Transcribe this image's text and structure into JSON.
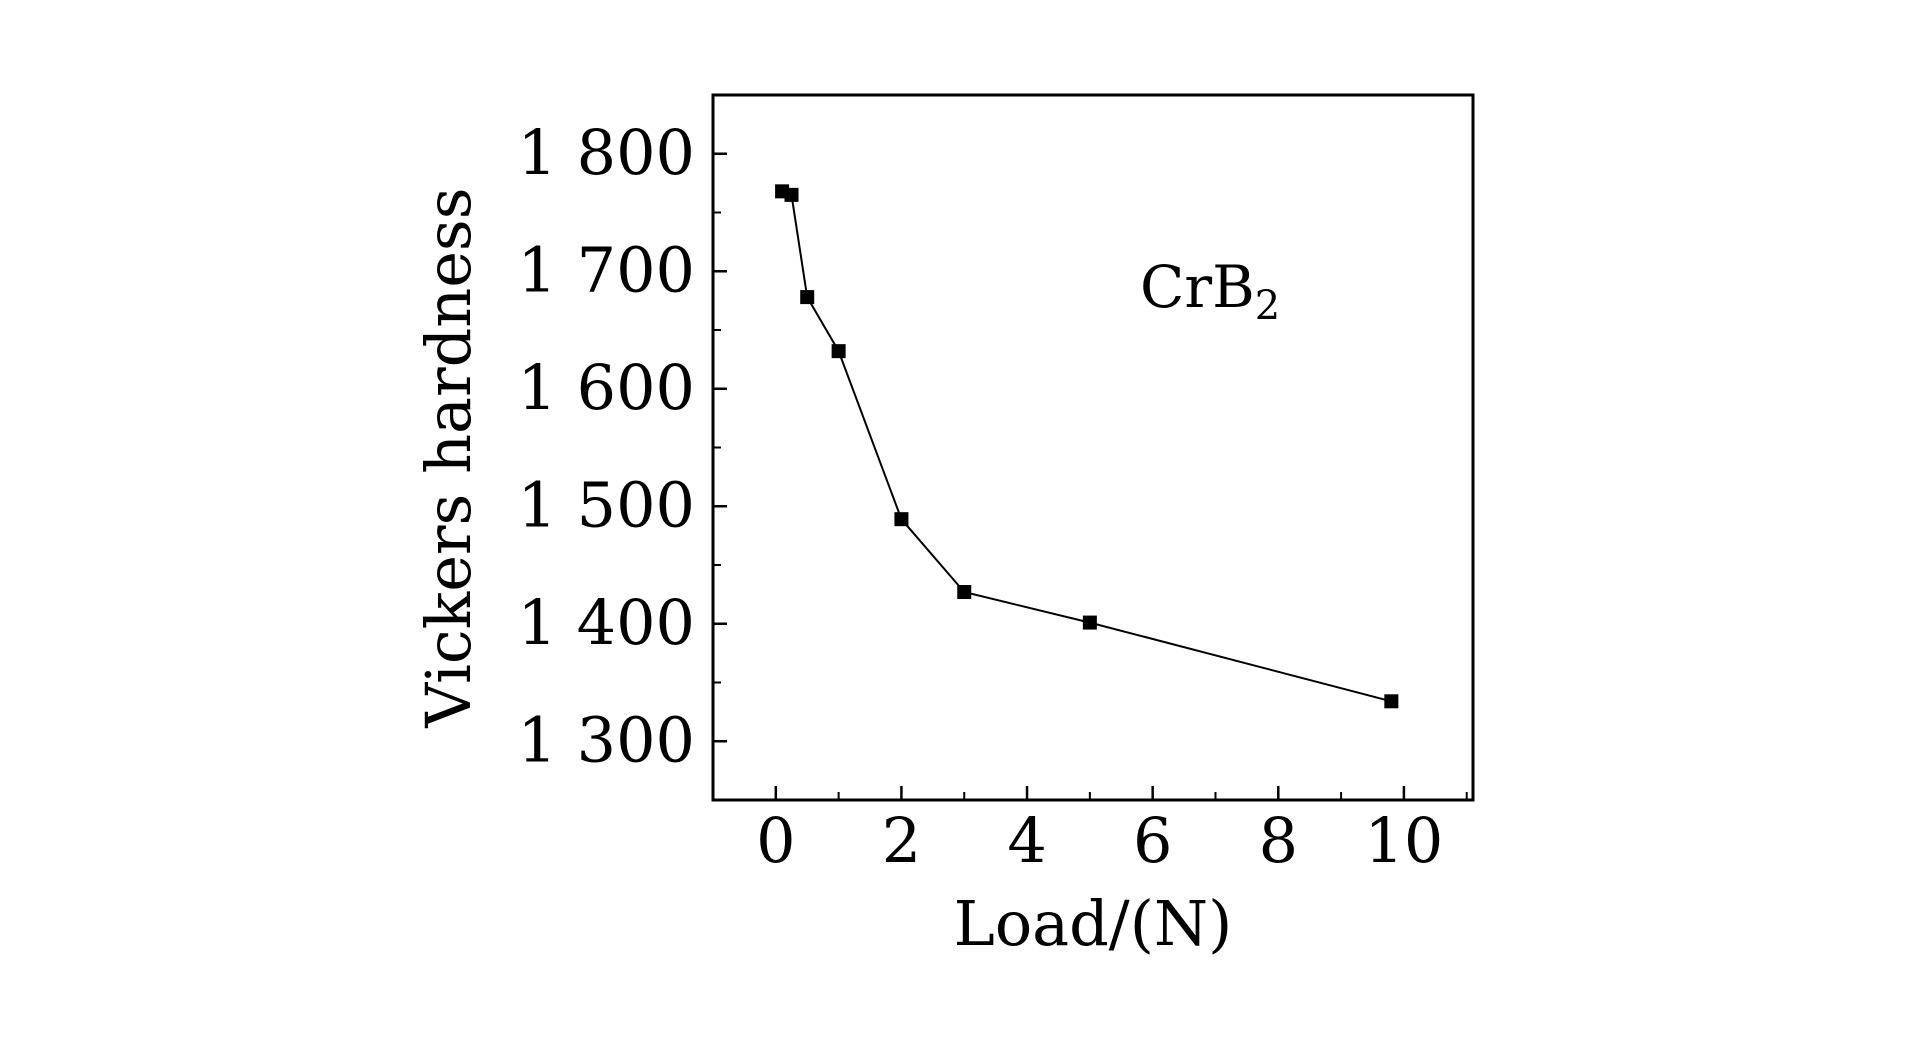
{
  "chart_data": {
    "type": "line",
    "title": "",
    "xlabel": "Load/(N)",
    "ylabel": "Vickers hardness",
    "annotation": {
      "base": "CrB",
      "subscript": "2"
    },
    "xlim": [
      -1,
      11.1
    ],
    "ylim": [
      1250,
      1850
    ],
    "xticks": [
      0,
      2,
      4,
      6,
      8,
      10
    ],
    "xtick_labels": [
      "0",
      "2",
      "4",
      "6",
      "8",
      "10"
    ],
    "yticks": [
      1300,
      1400,
      1500,
      1600,
      1700,
      1800
    ],
    "ytick_labels": [
      "1 300",
      "1 400",
      "1 500",
      "1 600",
      "1 700",
      "1 800"
    ],
    "x_minor_step": 1,
    "y_minor_step": 50,
    "grid": false,
    "marker": "square",
    "line_color": "#000000",
    "series": [
      {
        "name": "",
        "x": [
          0.1,
          0.25,
          0.5,
          1.0,
          2.0,
          3.0,
          5.0,
          9.8
        ],
        "y": [
          1768,
          1765,
          1678,
          1632,
          1489,
          1427,
          1401,
          1334
        ]
      }
    ]
  }
}
